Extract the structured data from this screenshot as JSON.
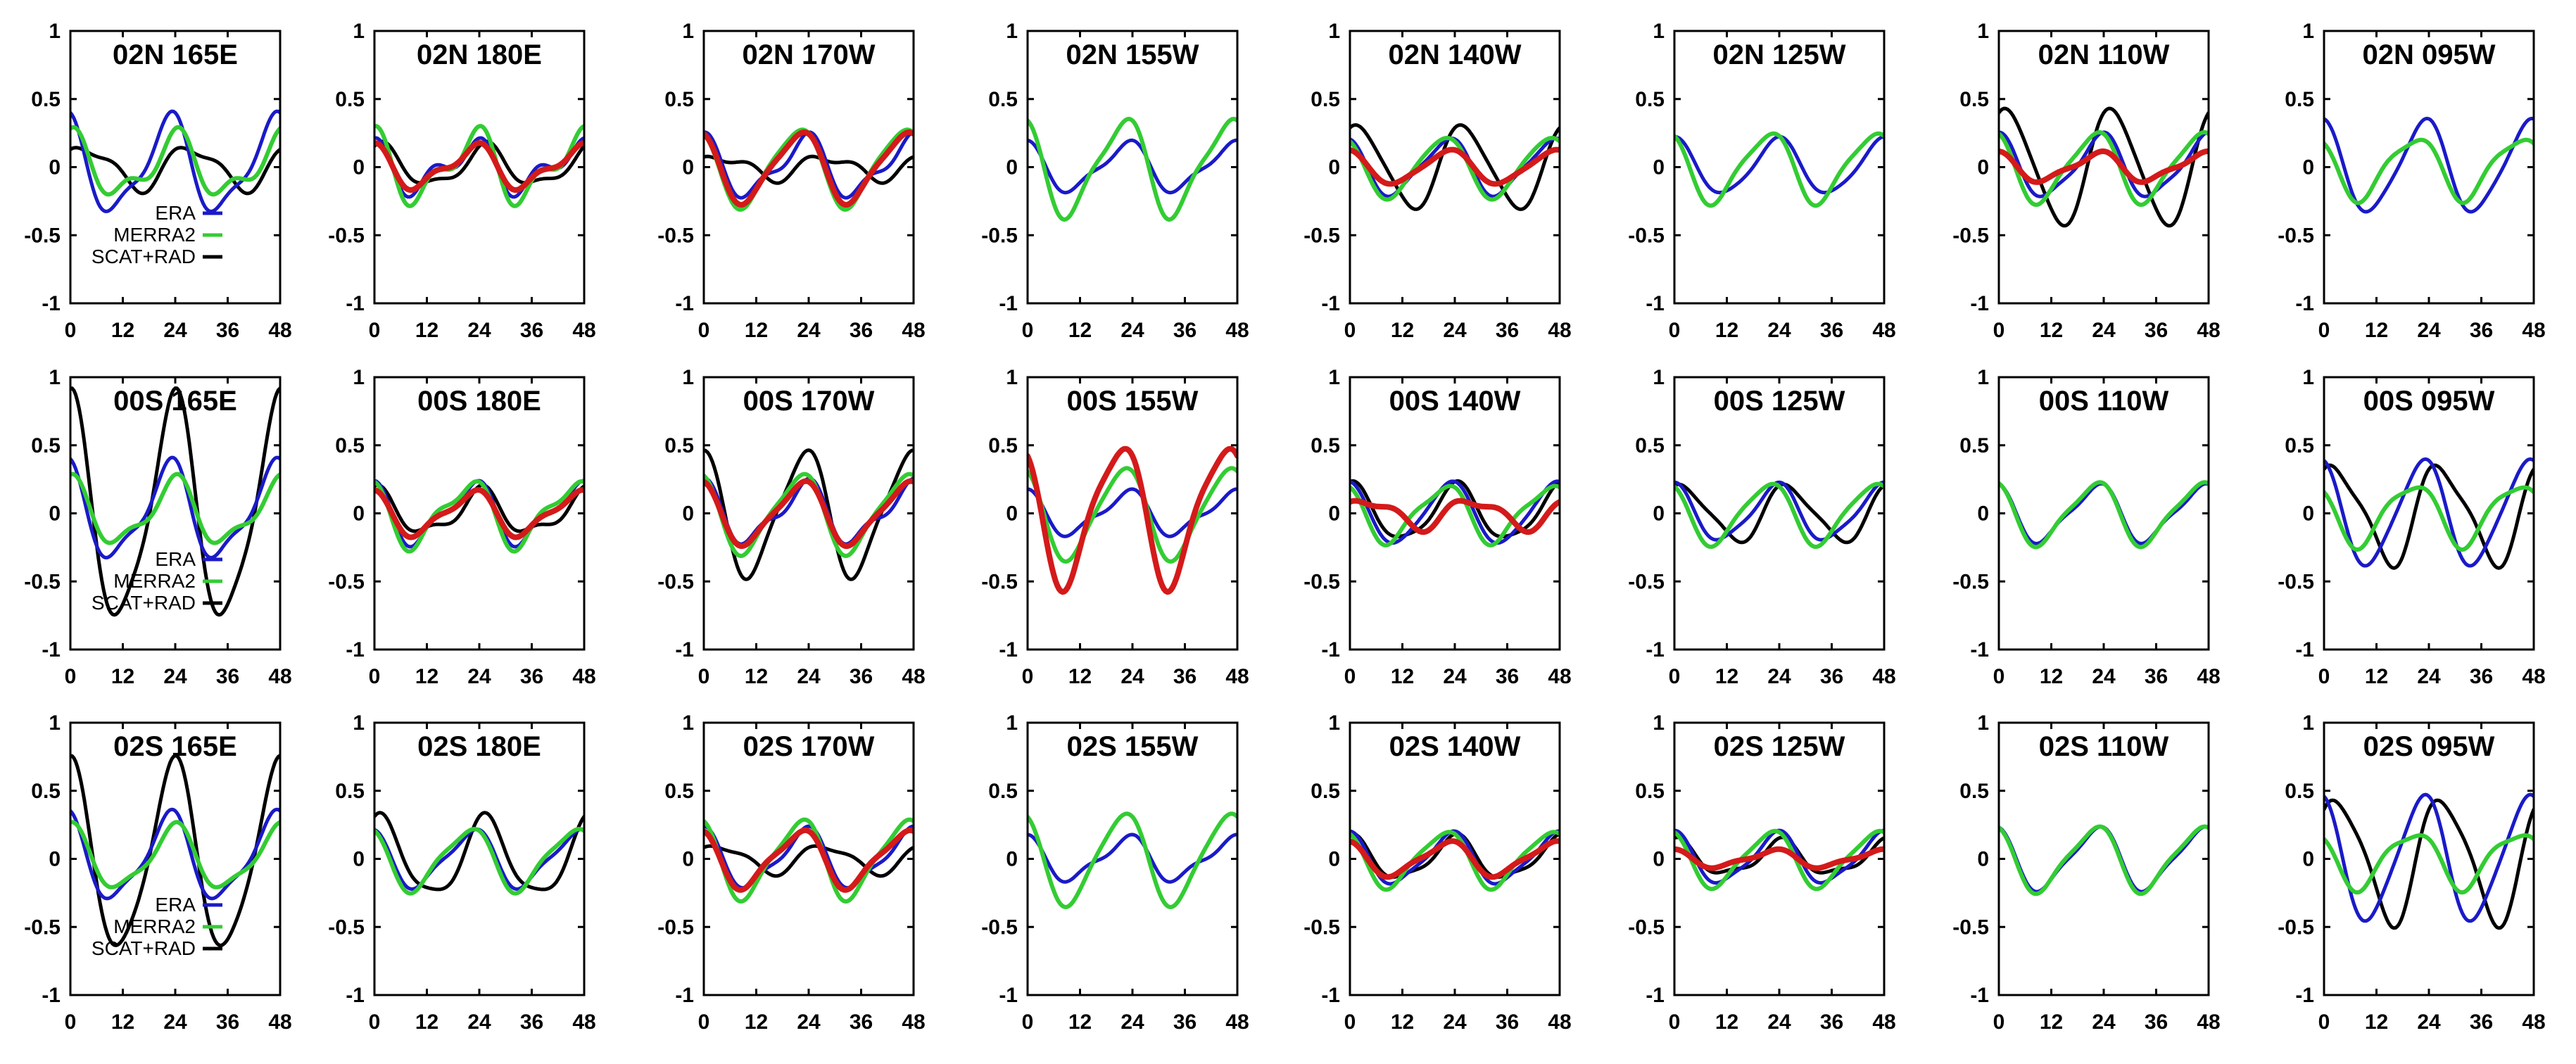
{
  "chart_data": {
    "type": "line",
    "xticks": [
      "0",
      "12",
      "24",
      "36",
      "48"
    ],
    "yticks": [
      "1",
      "0.5",
      "0",
      "-0.5",
      "-1"
    ],
    "xlim": [
      0,
      48
    ],
    "ylim": [
      -1,
      1
    ],
    "legend": [
      {
        "name": "ERA",
        "color": "#1a1ac8"
      },
      {
        "name": "MERRA2",
        "color": "#33cc33"
      },
      {
        "name": "SCAT+RAD",
        "color": "#000000"
      }
    ],
    "series_styles": {
      "era": {
        "color": "#1a1ac8"
      },
      "merra": {
        "color": "#33cc33"
      },
      "obs": {
        "color": "#000000"
      },
      "red": {
        "color": "#d41a1a"
      }
    },
    "panels": [
      {
        "title": "02N 165E",
        "legend": true,
        "series": [
          {
            "key": "era",
            "a1": 0.33,
            "p1": 2.0,
            "a2": 0.1,
            "p2": 1.5
          },
          {
            "key": "merra",
            "a1": 0.2,
            "p1": 1.6,
            "a2": 0.1,
            "p2": 1.0
          },
          {
            "key": "obs",
            "a1": 0.15,
            "p1": 0.6,
            "a2": 0.05,
            "p2": 2.0
          }
        ]
      },
      {
        "title": "02N 180E",
        "legend": false,
        "series": [
          {
            "key": "era",
            "a1": 0.15,
            "p1": 2.1,
            "a2": 0.1,
            "p2": 1.0
          },
          {
            "key": "merra",
            "a1": 0.22,
            "p1": 2.0,
            "a2": 0.12,
            "p2": 1.0
          },
          {
            "key": "red",
            "a1": 0.14,
            "p1": 2.0,
            "a2": 0.06,
            "p2": 1.0
          },
          {
            "key": "obs",
            "a1": 0.14,
            "p1": 1.2,
            "a2": 0.05,
            "p2": 0.5
          }
        ]
      },
      {
        "title": "02N 170W",
        "legend": false,
        "series": [
          {
            "key": "era",
            "a1": 0.2,
            "p1": 1.9,
            "a2": 0.08,
            "p2": 1.0
          },
          {
            "key": "merra",
            "a1": 0.28,
            "p1": 2.3,
            "a2": 0.05,
            "p2": 1.0
          },
          {
            "key": "red",
            "a1": 0.25,
            "p1": 2.2,
            "a2": 0.05,
            "p2": 1.0
          },
          {
            "key": "obs",
            "a1": 0.08,
            "p1": 0.5,
            "a2": 0.04,
            "p2": 2.0
          }
        ]
      },
      {
        "title": "02N 155W",
        "legend": false,
        "series": [
          {
            "key": "era",
            "a1": 0.17,
            "p1": 2.0,
            "a2": 0.05,
            "p2": 1.0
          },
          {
            "key": "merra",
            "a1": 0.34,
            "p1": 2.2,
            "a2": 0.08,
            "p2": 1.0
          }
        ]
      },
      {
        "title": "02N 140W",
        "legend": false,
        "series": [
          {
            "key": "era",
            "a1": 0.2,
            "p1": 2.1,
            "a2": 0.04,
            "p2": 1.0
          },
          {
            "key": "merra",
            "a1": 0.22,
            "p1": 2.3,
            "a2": 0.03,
            "p2": 1.0
          },
          {
            "key": "red",
            "a1": 0.12,
            "p1": 2.0,
            "a2": 0.02,
            "p2": 1.0
          },
          {
            "key": "obs",
            "a1": 0.3,
            "p1": 1.0,
            "a2": 0.04,
            "p2": 2.0
          }
        ]
      },
      {
        "title": "02N 125W",
        "legend": false,
        "series": [
          {
            "key": "era",
            "a1": 0.2,
            "p1": 1.7,
            "a2": 0.03,
            "p2": 1.0
          },
          {
            "key": "merra",
            "a1": 0.25,
            "p1": 2.3,
            "a2": 0.05,
            "p2": 1.0
          }
        ]
      },
      {
        "title": "02N 110W",
        "legend": false,
        "series": [
          {
            "key": "era",
            "a1": 0.22,
            "p1": 1.8,
            "a2": 0.05,
            "p2": 1.0
          },
          {
            "key": "merra",
            "a1": 0.25,
            "p1": 2.2,
            "a2": 0.05,
            "p2": 1.0
          },
          {
            "key": "red",
            "a1": 0.1,
            "p1": 2.0,
            "a2": 0.03,
            "p2": 1.0
          },
          {
            "key": "obs",
            "a1": 0.42,
            "p1": 1.0,
            "a2": 0.05,
            "p2": 2.0
          }
        ]
      },
      {
        "title": "02N 095W",
        "legend": false,
        "series": [
          {
            "key": "era",
            "a1": 0.33,
            "p1": 1.9,
            "a2": 0.05,
            "p2": 1.0
          },
          {
            "key": "merra",
            "a1": 0.22,
            "p1": 2.5,
            "a2": 0.05,
            "p2": 1.0
          }
        ]
      },
      {
        "title": "00S 165E",
        "legend": true,
        "series": [
          {
            "key": "era",
            "a1": 0.33,
            "p1": 2.0,
            "a2": 0.1,
            "p2": 1.5
          },
          {
            "key": "merra",
            "a1": 0.22,
            "p1": 1.7,
            "a2": 0.08,
            "p2": 1.0
          },
          {
            "key": "obs",
            "a1": 0.8,
            "p1": 1.7,
            "a2": 0.15,
            "p2": 1.0
          }
        ]
      },
      {
        "title": "00S 180E",
        "legend": false,
        "series": [
          {
            "key": "era",
            "a1": 0.2,
            "p1": 2.1,
            "a2": 0.08,
            "p2": 1.0
          },
          {
            "key": "merra",
            "a1": 0.22,
            "p1": 2.3,
            "a2": 0.08,
            "p2": 1.0
          },
          {
            "key": "red",
            "a1": 0.15,
            "p1": 2.1,
            "a2": 0.05,
            "p2": 1.0
          },
          {
            "key": "obs",
            "a1": 0.15,
            "p1": 1.5,
            "a2": 0.06,
            "p2": 1.0
          }
        ]
      },
      {
        "title": "00S 170W",
        "legend": false,
        "series": [
          {
            "key": "era",
            "a1": 0.2,
            "p1": 1.9,
            "a2": 0.08,
            "p2": 1.0
          },
          {
            "key": "merra",
            "a1": 0.28,
            "p1": 2.2,
            "a2": 0.06,
            "p2": 1.0
          },
          {
            "key": "red",
            "a1": 0.22,
            "p1": 2.1,
            "a2": 0.05,
            "p2": 1.0
          },
          {
            "key": "obs",
            "a1": 0.45,
            "p1": 1.9,
            "a2": 0.08,
            "p2": 0.5
          }
        ]
      },
      {
        "title": "00S 155W",
        "legend": false,
        "series": [
          {
            "key": "era",
            "a1": 0.15,
            "p1": 2.0,
            "a2": 0.05,
            "p2": 1.0
          },
          {
            "key": "merra",
            "a1": 0.33,
            "p1": 2.2,
            "a2": 0.05,
            "p2": 1.0
          },
          {
            "key": "red",
            "a1": 0.5,
            "p1": 2.4,
            "a2": 0.1,
            "p2": 1.0
          }
        ]
      },
      {
        "title": "00S 140W",
        "legend": false,
        "series": [
          {
            "key": "era",
            "a1": 0.22,
            "p1": 1.9,
            "a2": 0.03,
            "p2": 1.0
          },
          {
            "key": "merra",
            "a1": 0.2,
            "p1": 2.3,
            "a2": 0.05,
            "p2": 1.0
          },
          {
            "key": "red",
            "a1": 0.1,
            "p1": 0.5,
            "a2": 0.04,
            "p2": 2.0
          },
          {
            "key": "obs",
            "a1": 0.2,
            "p1": 1.5,
            "a2": 0.04,
            "p2": 1.0
          }
        ]
      },
      {
        "title": "00S 125W",
        "legend": false,
        "series": [
          {
            "key": "era",
            "a1": 0.2,
            "p1": 1.8,
            "a2": 0.04,
            "p2": 1.0
          },
          {
            "key": "merra",
            "a1": 0.22,
            "p1": 2.3,
            "a2": 0.04,
            "p2": 1.0
          },
          {
            "key": "obs",
            "a1": 0.2,
            "p1": 1.0,
            "a2": 0.04,
            "p2": 2.0
          }
        ]
      },
      {
        "title": "00S 110W",
        "legend": false,
        "series": [
          {
            "key": "era",
            "a1": 0.2,
            "p1": 2.1,
            "a2": 0.05,
            "p2": 1.0
          },
          {
            "key": "merra",
            "a1": 0.22,
            "p1": 2.2,
            "a2": 0.05,
            "p2": 1.0
          }
        ]
      },
      {
        "title": "00S 095W",
        "legend": false,
        "series": [
          {
            "key": "era",
            "a1": 0.38,
            "p1": 2.0,
            "a2": 0.05,
            "p2": 1.0
          },
          {
            "key": "merra",
            "a1": 0.22,
            "p1": 2.6,
            "a2": 0.05,
            "p2": 1.0
          },
          {
            "key": "obs",
            "a1": 0.35,
            "p1": 0.8,
            "a2": 0.08,
            "p2": 2.0
          }
        ]
      },
      {
        "title": "02S 165E",
        "legend": true,
        "series": [
          {
            "key": "era",
            "a1": 0.3,
            "p1": 2.0,
            "a2": 0.08,
            "p2": 1.5
          },
          {
            "key": "merra",
            "a1": 0.22,
            "p1": 1.7,
            "a2": 0.06,
            "p2": 1.0
          },
          {
            "key": "obs",
            "a1": 0.68,
            "p1": 1.7,
            "a2": 0.1,
            "p2": 1.0
          }
        ]
      },
      {
        "title": "02S 180E",
        "legend": false,
        "series": [
          {
            "key": "era",
            "a1": 0.2,
            "p1": 2.1,
            "a2": 0.05,
            "p2": 1.0
          },
          {
            "key": "merra",
            "a1": 0.22,
            "p1": 2.3,
            "a2": 0.05,
            "p2": 1.0
          },
          {
            "key": "obs",
            "a1": 0.28,
            "p1": 1.2,
            "a2": 0.06,
            "p2": 1.0
          }
        ]
      },
      {
        "title": "02S 170W",
        "legend": false,
        "series": [
          {
            "key": "era",
            "a1": 0.2,
            "p1": 1.9,
            "a2": 0.06,
            "p2": 1.0
          },
          {
            "key": "merra",
            "a1": 0.28,
            "p1": 2.2,
            "a2": 0.06,
            "p2": 1.0
          },
          {
            "key": "red",
            "a1": 0.2,
            "p1": 2.2,
            "a2": 0.05,
            "p2": 1.0
          },
          {
            "key": "obs",
            "a1": 0.1,
            "p1": 0.6,
            "a2": 0.03,
            "p2": 2.0
          }
        ]
      },
      {
        "title": "02S 155W",
        "legend": false,
        "series": [
          {
            "key": "era",
            "a1": 0.15,
            "p1": 2.0,
            "a2": 0.05,
            "p2": 1.0
          },
          {
            "key": "merra",
            "a1": 0.33,
            "p1": 2.2,
            "a2": 0.05,
            "p2": 1.0
          }
        ]
      },
      {
        "title": "02S 140W",
        "legend": false,
        "series": [
          {
            "key": "era",
            "a1": 0.18,
            "p1": 1.9,
            "a2": 0.04,
            "p2": 1.0
          },
          {
            "key": "merra",
            "a1": 0.2,
            "p1": 2.3,
            "a2": 0.04,
            "p2": 1.0
          },
          {
            "key": "red",
            "a1": 0.12,
            "p1": 2.1,
            "a2": 0.03,
            "p2": 1.0
          },
          {
            "key": "obs",
            "a1": 0.15,
            "p1": 1.6,
            "a2": 0.04,
            "p2": 1.0
          }
        ]
      },
      {
        "title": "02S 125W",
        "legend": false,
        "series": [
          {
            "key": "era",
            "a1": 0.18,
            "p1": 1.8,
            "a2": 0.04,
            "p2": 1.0
          },
          {
            "key": "merra",
            "a1": 0.2,
            "p1": 2.2,
            "a2": 0.04,
            "p2": 1.0
          },
          {
            "key": "red",
            "a1": 0.06,
            "p1": 2.0,
            "a2": 0.02,
            "p2": 1.0
          },
          {
            "key": "obs",
            "a1": 0.12,
            "p1": 1.5,
            "a2": 0.04,
            "p2": 1.0
          }
        ]
      },
      {
        "title": "02S 110W",
        "legend": false,
        "series": [
          {
            "key": "era",
            "a1": 0.22,
            "p1": 2.1,
            "a2": 0.05,
            "p2": 1.0
          },
          {
            "key": "merra",
            "a1": 0.23,
            "p1": 2.2,
            "a2": 0.05,
            "p2": 1.0
          }
        ]
      },
      {
        "title": "02S 095W",
        "legend": false,
        "series": [
          {
            "key": "era",
            "a1": 0.45,
            "p1": 2.0,
            "a2": 0.06,
            "p2": 1.0
          },
          {
            "key": "merra",
            "a1": 0.2,
            "p1": 2.6,
            "a2": 0.05,
            "p2": 1.0
          },
          {
            "key": "obs",
            "a1": 0.45,
            "p1": 0.7,
            "a2": 0.08,
            "p2": 2.0
          }
        ]
      }
    ]
  }
}
